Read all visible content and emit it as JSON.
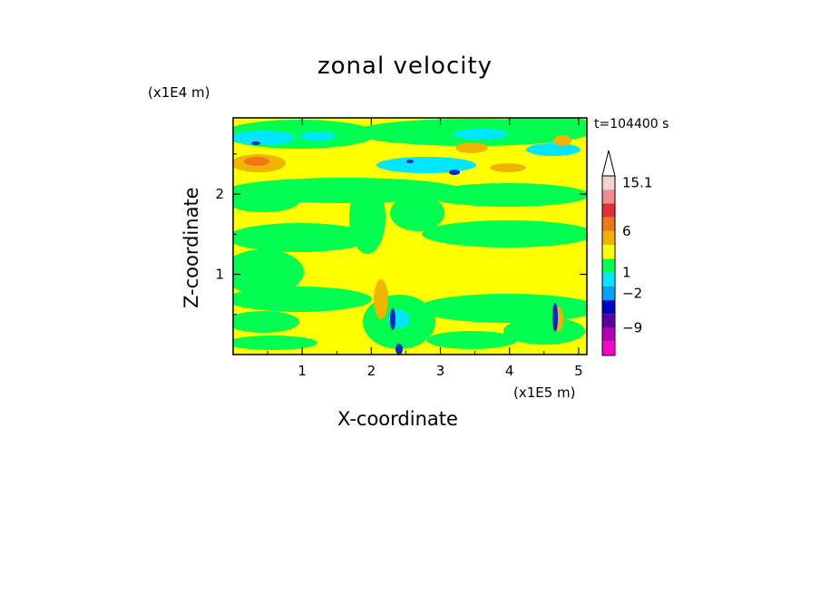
{
  "chart_data": {
    "type": "heatmap",
    "title": "zonal velocity",
    "xlabel": "X-coordinate",
    "ylabel": "Z-coordinate",
    "x_unit": "(x1E5 m)",
    "y_unit": "(x1E4 m)",
    "time_label": "t=104400 s",
    "xlim": [
      0,
      5.12
    ],
    "ylim": [
      0,
      2.95
    ],
    "x_ticks": [
      "1",
      "2",
      "3",
      "4",
      "5"
    ],
    "y_ticks": [
      "1",
      "2"
    ],
    "colorbar": {
      "labels": [
        "15.1",
        "6",
        "1",
        "−2",
        "−9"
      ],
      "colors": [
        "#f5d2d2",
        "#f08c8c",
        "#e0303a",
        "#f07814",
        "#f0b400",
        "#ffff00",
        "#00ff50",
        "#00e6ff",
        "#00a0ff",
        "#0000c8",
        "#5a00a0",
        "#b400b4",
        "#ff00c8"
      ]
    },
    "field_colors": {
      "background": "#ffff00",
      "negative_weak": "#00ff50",
      "negative_mid": "#00e6ff",
      "negative_strong": "#0028c8",
      "positive_mid": "#f0b400",
      "positive_strong": "#f07814"
    }
  }
}
